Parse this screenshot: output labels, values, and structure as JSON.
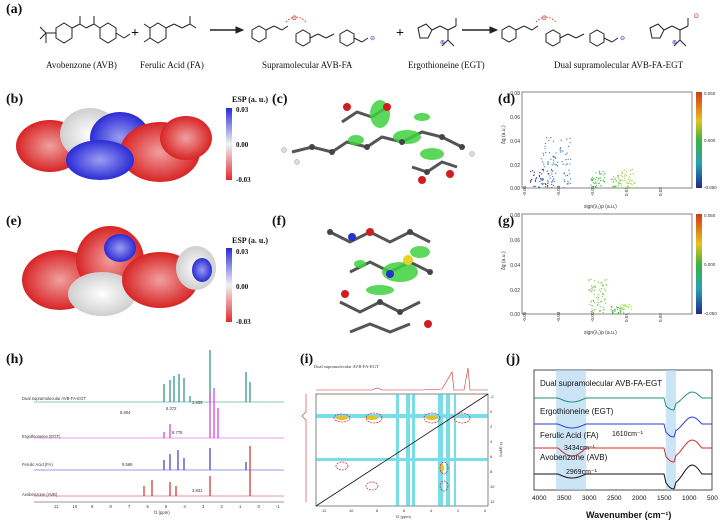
{
  "panels": {
    "a": "(a)",
    "b": "(b)",
    "c": "(c)",
    "d": "(d)",
    "e": "(e)",
    "f": "(f)",
    "g": "(g)",
    "h": "(h)",
    "i": "(i)",
    "j": "(j)"
  },
  "scheme": {
    "plus1": "+",
    "plus2": "+",
    "avb": "Avobenzone (AVB)",
    "fa": "Ferulic Acid (FA)",
    "supra": "Supramolecular AVB-FA",
    "egt": "Ergothioneine (EGT)",
    "dual": "Dual supramolecular AVB-FA-EGT"
  },
  "esp": {
    "title": "ESP (a. u.)",
    "max": "0.03",
    "mid": "0.00",
    "min": "-0.03",
    "colors": {
      "pos": "#2b2bd6",
      "neu": "#f2f2f2",
      "neg": "#e32b2b"
    }
  },
  "igm": {
    "ylabel": "δg (a.u.)",
    "xlabel": "sign(λ₂)ρ (a.u.)",
    "yticks": [
      "0.08",
      "0.07",
      "0.06",
      "0.05",
      "0.04",
      "0.03",
      "0.02",
      "0.01",
      "0.00"
    ],
    "xticks": [
      "-0.05",
      "-0.04",
      "-0.03",
      "-0.02",
      "-0.01",
      "0.00",
      "0.01",
      "0.02",
      "0.03",
      "0.04",
      "0.05"
    ],
    "cbar": [
      "0.050",
      "0.040",
      "0.030",
      "0.020",
      "0.010",
      "0.000",
      "-0.010",
      "-0.020",
      "-0.030",
      "-0.040",
      "-0.050"
    ]
  },
  "nmr": {
    "traces": [
      "Dual supramolecular AVB-FA-EGT",
      "Ergothioneine (EGT)",
      "Ferulic Acid (FA)",
      "Avobenzone (AVB)"
    ],
    "peaks": [
      "8.604",
      "6.372",
      "3.859",
      "6.778",
      "9.569",
      "3.831"
    ],
    "xticks": [
      "11",
      "10",
      "9",
      "8",
      "7",
      "6",
      "5",
      "4",
      "3",
      "2",
      "1",
      "0",
      "-1"
    ],
    "xunit": "f1 (ppm)",
    "colors": [
      "#1f8f80",
      "#d63ad6",
      "#3838c8",
      "#d02a2a"
    ]
  },
  "cosy": {
    "title": "Dual supramolecular AVB-FA-EGT",
    "xticks": [
      "12",
      "10",
      "8",
      "6",
      "4",
      "2",
      "0"
    ],
    "yticks": [
      "-2",
      "0",
      "2",
      "4",
      "6",
      "8",
      "10",
      "12"
    ],
    "xunit": "f2 (ppm)",
    "yunit": "f1 (ppm)"
  },
  "ir": {
    "traces": [
      "Dual supramolecular AVB-FA-EGT",
      "Ergothioneine (EGT)",
      "Ferulic Acid (FA)",
      "Avobenzone (AVB)"
    ],
    "ann": [
      "1610cm⁻¹",
      "3434cm⁻¹",
      "2969cm⁻¹"
    ],
    "xticks": [
      "4000",
      "3500",
      "3000",
      "2500",
      "2000",
      "1500",
      "1000",
      "500"
    ],
    "xlabel": "Wavenumber (cm⁻¹)",
    "colors": [
      "#1f8f80",
      "#2e3cd6",
      "#d42a2a",
      "#111111"
    ]
  }
}
